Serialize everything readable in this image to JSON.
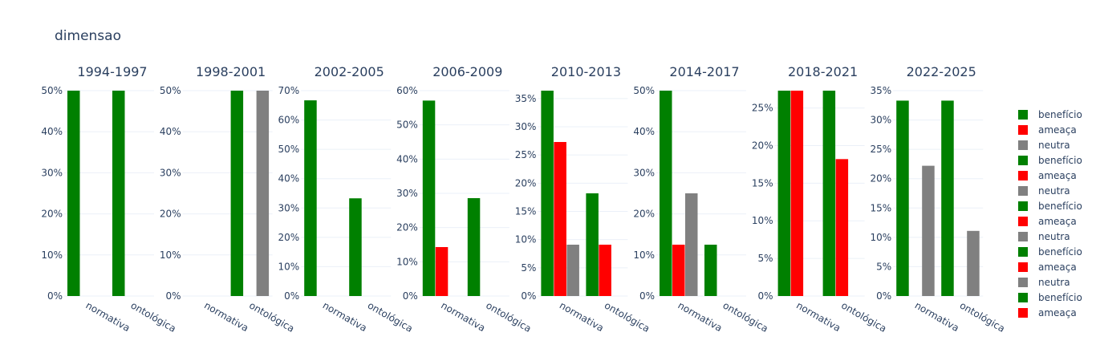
{
  "title": "dimensao",
  "chart_data": {
    "type": "bar",
    "title": "dimensao",
    "categories": [
      "normativa",
      "ontológica"
    ],
    "series_names": [
      "benefício",
      "ameaça",
      "neutra"
    ],
    "colors": {
      "benefício": "#008000",
      "ameaça": "#ff0000",
      "neutra": "#808080"
    },
    "legend": {
      "placement": "right",
      "entries": [
        "benefício",
        "ameaça",
        "neutra",
        "benefício",
        "ameaça",
        "neutra",
        "benefício",
        "ameaça",
        "neutra",
        "benefício",
        "ameaça",
        "neutra",
        "benefício",
        "ameaça"
      ]
    },
    "grid": true,
    "panels": [
      {
        "title": "1994-1997",
        "ylim": [
          0,
          0.5
        ],
        "ticks": [
          0,
          0.1,
          0.2,
          0.3,
          0.4,
          0.5
        ],
        "tick_labels": [
          "0%",
          "10%",
          "20%",
          "30%",
          "40%",
          "50%"
        ],
        "series": [
          {
            "name": "benefício",
            "values": [
              0.5,
              0.5
            ]
          },
          {
            "name": "ameaça",
            "values": [
              0,
              0
            ]
          },
          {
            "name": "neutra",
            "values": [
              0,
              0
            ]
          }
        ]
      },
      {
        "title": "1998-2001",
        "ylim": [
          0,
          0.5
        ],
        "ticks": [
          0,
          0.1,
          0.2,
          0.3,
          0.4,
          0.5
        ],
        "tick_labels": [
          "0%",
          "10%",
          "20%",
          "30%",
          "40%",
          "50%"
        ],
        "series": [
          {
            "name": "benefício",
            "values": [
              0,
              0.5
            ]
          },
          {
            "name": "ameaça",
            "values": [
              0,
              0
            ]
          },
          {
            "name": "neutra",
            "values": [
              0,
              0.5
            ]
          }
        ]
      },
      {
        "title": "2002-2005",
        "ylim": [
          0,
          0.7
        ],
        "ticks": [
          0,
          0.1,
          0.2,
          0.3,
          0.4,
          0.5,
          0.6,
          0.7
        ],
        "tick_labels": [
          "0%",
          "10%",
          "20%",
          "30%",
          "40%",
          "50%",
          "60%",
          "70%"
        ],
        "series": [
          {
            "name": "benefício",
            "values": [
              0.667,
              0.333
            ]
          },
          {
            "name": "ameaça",
            "values": [
              0,
              0
            ]
          },
          {
            "name": "neutra",
            "values": [
              0,
              0
            ]
          }
        ]
      },
      {
        "title": "2006-2009",
        "ylim": [
          0,
          0.6
        ],
        "ticks": [
          0,
          0.1,
          0.2,
          0.3,
          0.4,
          0.5,
          0.6
        ],
        "tick_labels": [
          "0%",
          "10%",
          "20%",
          "30%",
          "40%",
          "50%",
          "60%"
        ],
        "series": [
          {
            "name": "benefício",
            "values": [
              0.571,
              0.286
            ]
          },
          {
            "name": "ameaça",
            "values": [
              0.143,
              0
            ]
          },
          {
            "name": "neutra",
            "values": [
              0,
              0
            ]
          }
        ]
      },
      {
        "title": "2010-2013",
        "ylim": [
          0,
          0.364
        ],
        "ticks": [
          0,
          0.05,
          0.1,
          0.15,
          0.2,
          0.25,
          0.3,
          0.35
        ],
        "tick_labels": [
          "0%",
          "5%",
          "10%",
          "15%",
          "20%",
          "25%",
          "30%",
          "35%"
        ],
        "series": [
          {
            "name": "benefício",
            "values": [
              0.364,
              0.182
            ]
          },
          {
            "name": "ameaça",
            "values": [
              0.273,
              0.091
            ]
          },
          {
            "name": "neutra",
            "values": [
              0.091,
              0
            ]
          }
        ]
      },
      {
        "title": "2014-2017",
        "ylim": [
          0,
          0.5
        ],
        "ticks": [
          0,
          0.1,
          0.2,
          0.3,
          0.4,
          0.5
        ],
        "tick_labels": [
          "0%",
          "10%",
          "20%",
          "30%",
          "40%",
          "50%"
        ],
        "series": [
          {
            "name": "benefício",
            "values": [
              0.5,
              0.125
            ]
          },
          {
            "name": "ameaça",
            "values": [
              0.125,
              0
            ]
          },
          {
            "name": "neutra",
            "values": [
              0.25,
              0
            ]
          }
        ]
      },
      {
        "title": "2018-2021",
        "ylim": [
          0,
          0.273
        ],
        "ticks": [
          0,
          0.05,
          0.1,
          0.15,
          0.2,
          0.25
        ],
        "tick_labels": [
          "0%",
          "5%",
          "10%",
          "15%",
          "20%",
          "25%"
        ],
        "series": [
          {
            "name": "benefício",
            "values": [
              0.273,
              0.273
            ]
          },
          {
            "name": "ameaça",
            "values": [
              0.273,
              0.182
            ]
          },
          {
            "name": "neutra",
            "values": [
              0,
              0
            ]
          }
        ]
      },
      {
        "title": "2022-2025",
        "ylim": [
          0,
          0.35
        ],
        "ticks": [
          0,
          0.05,
          0.1,
          0.15,
          0.2,
          0.25,
          0.3,
          0.35
        ],
        "tick_labels": [
          "0%",
          "5%",
          "10%",
          "15%",
          "20%",
          "25%",
          "30%",
          "35%"
        ],
        "series": [
          {
            "name": "benefício",
            "values": [
              0.333,
              0.333
            ]
          },
          {
            "name": "ameaça",
            "values": [
              0,
              0
            ]
          },
          {
            "name": "neutra",
            "values": [
              0.222,
              0.111
            ]
          }
        ]
      }
    ]
  }
}
